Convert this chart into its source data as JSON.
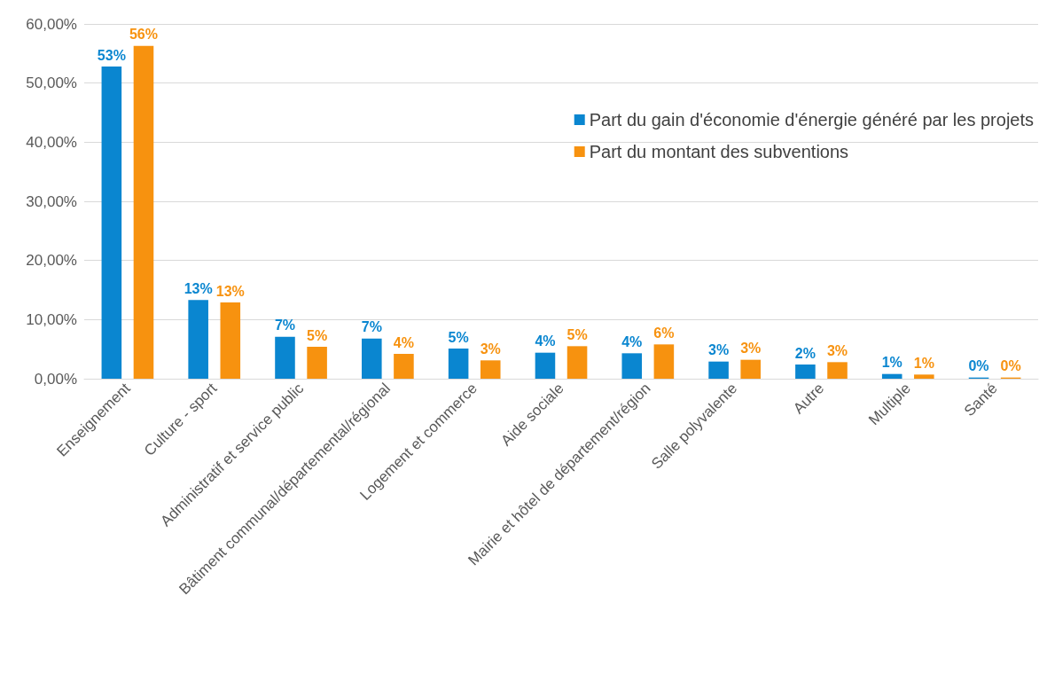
{
  "chart_data": {
    "type": "bar",
    "categories": [
      "Enseignement",
      "Culture - sport",
      "Administratif et service public",
      "Bâtiment communal/départemental/régional",
      "Logement et commerce",
      "Aide sociale",
      "Mairie et hôtel de département/région",
      "Salle polyvalente",
      "Autre",
      "Multiple",
      "Santé"
    ],
    "series": [
      {
        "name": "Part du gain d'économie d'énergie généré par les projets",
        "color": "#0a86d0",
        "values": [
          52.8,
          13.3,
          7.1,
          6.8,
          5.1,
          4.4,
          4.3,
          2.9,
          2.4,
          0.8,
          0.2
        ],
        "value_labels": [
          "53%",
          "13%",
          "7%",
          "7%",
          "5%",
          "4%",
          "4%",
          "3%",
          "2%",
          "1%",
          "0%"
        ]
      },
      {
        "name": "Part du montant des subventions",
        "color": "#f7920f",
        "values": [
          56.3,
          12.9,
          5.4,
          4.2,
          3.1,
          5.5,
          5.8,
          3.2,
          2.8,
          0.7,
          0.2
        ],
        "value_labels": [
          "56%",
          "13%",
          "5%",
          "4%",
          "3%",
          "5%",
          "6%",
          "3%",
          "3%",
          "1%",
          "0%"
        ]
      }
    ],
    "ylim": [
      0,
      60
    ],
    "yticks": [
      {
        "value": 0,
        "label": "0,00%"
      },
      {
        "value": 10,
        "label": "10,00%"
      },
      {
        "value": 20,
        "label": "20,00%"
      },
      {
        "value": 30,
        "label": "30,00%"
      },
      {
        "value": 40,
        "label": "40,00%"
      },
      {
        "value": 50,
        "label": "50,00%"
      },
      {
        "value": 60,
        "label": "60,00%"
      }
    ],
    "grid": "y",
    "legend": "top right"
  }
}
